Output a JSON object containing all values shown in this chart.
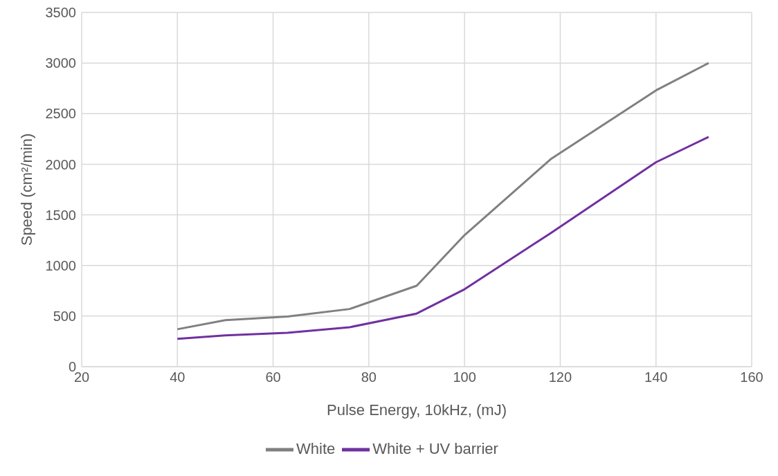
{
  "chart_data": {
    "type": "line",
    "xlabel": "Pulse Energy, 10kHz, (mJ)",
    "ylabel": "Speed (cm²/min)",
    "x": [
      40,
      50,
      63,
      76,
      90,
      100,
      118,
      140,
      151
    ],
    "series": [
      {
        "name": "White",
        "color": "#808080",
        "values": [
          370,
          460,
          495,
          570,
          800,
          1300,
          2050,
          2730,
          3000
        ]
      },
      {
        "name": "White + UV barrier",
        "color": "#7030a0",
        "values": [
          275,
          310,
          335,
          390,
          525,
          765,
          1320,
          2020,
          2270
        ]
      }
    ],
    "xlim": [
      20,
      160
    ],
    "xticks": [
      20,
      40,
      60,
      80,
      100,
      120,
      140,
      160
    ],
    "ylim": [
      0,
      3500
    ],
    "yticks": [
      0,
      500,
      1000,
      1500,
      2000,
      2500,
      3000,
      3500
    ],
    "grid": true,
    "legend": "bottom",
    "marker": "none",
    "line_style": "solid"
  }
}
